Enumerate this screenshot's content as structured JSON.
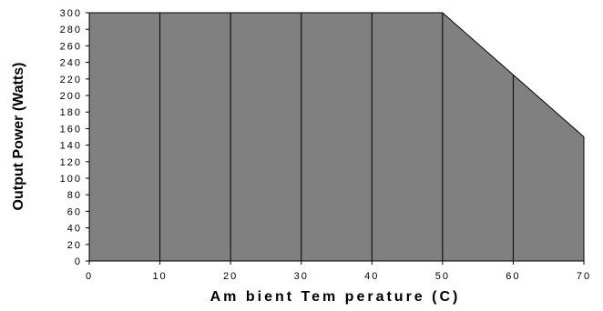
{
  "chart_data": {
    "type": "area",
    "title": "",
    "xlabel": "Am bient Tem perature (C)",
    "ylabel": "Output Power (Watts)",
    "xlim": [
      0,
      70
    ],
    "ylim": [
      0,
      300
    ],
    "x_ticks": [
      0,
      10,
      20,
      30,
      40,
      50,
      60,
      70
    ],
    "y_ticks": [
      0,
      20,
      40,
      60,
      80,
      100,
      120,
      140,
      160,
      180,
      200,
      220,
      240,
      260,
      280,
      300
    ],
    "x_tick_labels": [
      "0",
      "10",
      "20",
      "30",
      "40",
      "50",
      "60",
      "70"
    ],
    "y_tick_labels": [
      "0",
      "20",
      "40",
      "60",
      "80",
      "100",
      "120",
      "140",
      "160",
      "180",
      "200",
      "220",
      "240",
      "260",
      "280",
      "300"
    ],
    "grid": "vertical lines at each x tick",
    "legend": "none",
    "series": [
      {
        "x": [
          0,
          50,
          60,
          70
        ],
        "y": [
          300,
          300,
          225,
          150
        ]
      }
    ],
    "colors": {
      "fill": "#808080",
      "line": "#000000"
    }
  }
}
